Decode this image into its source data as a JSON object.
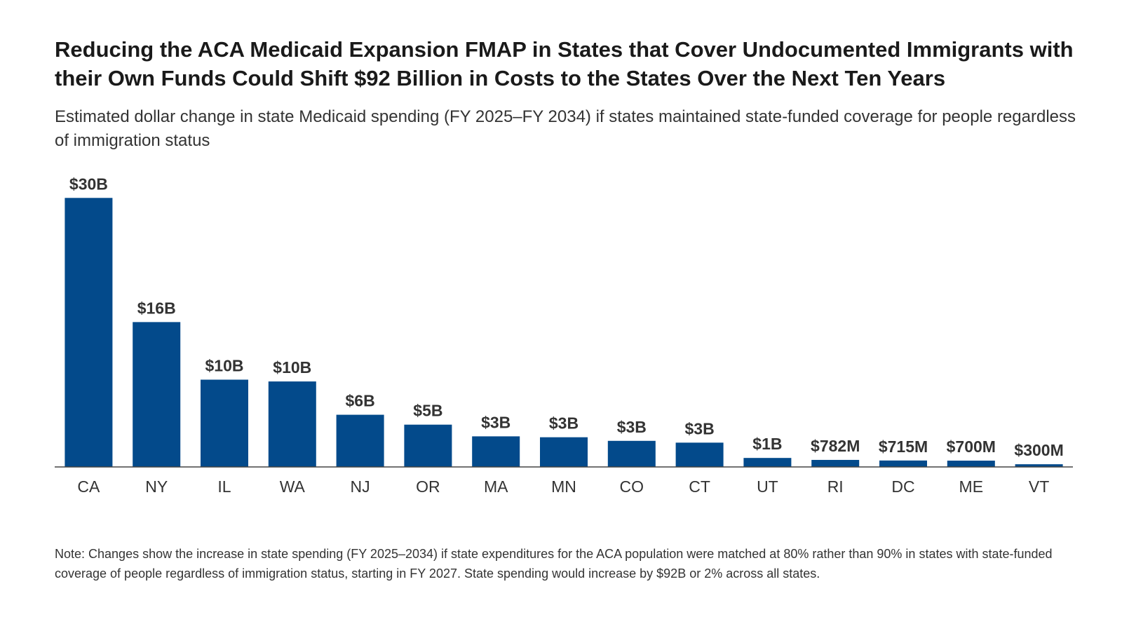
{
  "header": {
    "title": "Reducing the ACA Medicaid Expansion FMAP in States that Cover Undocumented Immigrants with their Own Funds Could Shift $92 Billion in Costs to the States Over the Next Ten Years",
    "subtitle": "Estimated dollar change in state Medicaid spending (FY 2025–FY 2034) if states maintained state-funded coverage for people regardless of immigration status"
  },
  "footer": {
    "note": "Note: Changes show the increase in state spending (FY 2025–2034) if state expenditures for the ACA population were matched at 80% rather than 90% in states with state-funded coverage of people regardless of immigration status, starting in FY 2027. State spending would increase by $92B or 2% across all states."
  },
  "chart_data": {
    "type": "bar",
    "title": "Reducing the ACA Medicaid Expansion FMAP in States that Cover Undocumented Immigrants with their Own Funds Could Shift $92 Billion in Costs to the States Over the Next Ten Years",
    "xlabel": "",
    "ylabel": "",
    "categories": [
      "CA",
      "NY",
      "IL",
      "WA",
      "NJ",
      "OR",
      "MA",
      "MN",
      "CO",
      "CT",
      "UT",
      "RI",
      "DC",
      "ME",
      "VT"
    ],
    "values": [
      29.9,
      16.1,
      9.7,
      9.5,
      5.8,
      4.7,
      3.4,
      3.3,
      2.9,
      2.7,
      1.0,
      0.782,
      0.715,
      0.7,
      0.3
    ],
    "data_labels": [
      "$30B",
      "$16B",
      "$10B",
      "$10B",
      "$6B",
      "$5B",
      "$3B",
      "$3B",
      "$3B",
      "$3B",
      "$1B",
      "$782M",
      "$715M",
      "$700M",
      "$300M"
    ],
    "ylim": [
      0,
      30
    ],
    "grid": false,
    "color": "#034a8b"
  }
}
